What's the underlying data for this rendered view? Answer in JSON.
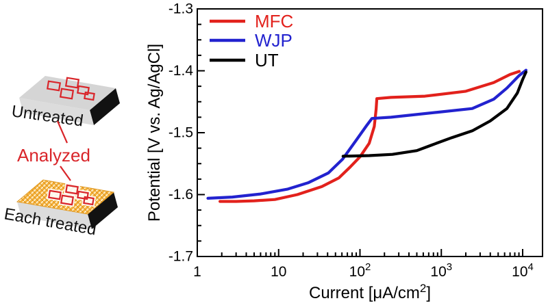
{
  "diagram": {
    "untreated_label": "Untreated",
    "analyzed_label": "Analyzed",
    "treated_label": "Each treated",
    "colors": {
      "accent": "#d9252a",
      "slab_top": "#d5d5d5",
      "slab_front": "#dcdcdc",
      "slab_side": "#121212",
      "treated_fill": "#f4b23a"
    }
  },
  "chart_data": {
    "type": "line",
    "title": "",
    "xlabel": "Current [μA/cm^2]",
    "ylabel": "Potential [V vs. Ag/AgCl]",
    "x_scale": "log",
    "xlim": [
      1,
      10000
    ],
    "ylim": [
      -1.7,
      -1.3
    ],
    "x_ticks": [
      "1",
      "10",
      "10^2",
      "10^3",
      "10^4"
    ],
    "x_tick_values": [
      1,
      10,
      100,
      1000,
      10000
    ],
    "y_ticks": [
      "-1.3",
      "-1.4",
      "-1.5",
      "-1.6",
      "-1.7"
    ],
    "y_tick_values": [
      -1.3,
      -1.4,
      -1.5,
      -1.6,
      -1.7
    ],
    "y_minor_step": 0.025,
    "grid": false,
    "legend_position": "top-left-inside",
    "series": [
      {
        "name": "MFC",
        "color": "#e2211c",
        "points": [
          [
            1.9,
            -1.611
          ],
          [
            3,
            -1.611
          ],
          [
            5,
            -1.61
          ],
          [
            9,
            -1.608
          ],
          [
            17,
            -1.6
          ],
          [
            34,
            -1.587
          ],
          [
            55,
            -1.573
          ],
          [
            75,
            -1.556
          ],
          [
            100,
            -1.539
          ],
          [
            130,
            -1.517
          ],
          [
            150,
            -1.49
          ],
          [
            158,
            -1.462
          ],
          [
            161,
            -1.445
          ],
          [
            240,
            -1.443
          ],
          [
            630,
            -1.441
          ],
          [
            2000,
            -1.433
          ],
          [
            4400,
            -1.419
          ],
          [
            7000,
            -1.406
          ],
          [
            9100,
            -1.401
          ]
        ]
      },
      {
        "name": "WJP",
        "color": "#2222cf",
        "points": [
          [
            1.35,
            -1.606
          ],
          [
            2.7,
            -1.604
          ],
          [
            6,
            -1.599
          ],
          [
            13,
            -1.591
          ],
          [
            23,
            -1.581
          ],
          [
            41,
            -1.565
          ],
          [
            61,
            -1.543
          ],
          [
            90,
            -1.512
          ],
          [
            120,
            -1.489
          ],
          [
            140,
            -1.477
          ],
          [
            240,
            -1.475
          ],
          [
            900,
            -1.467
          ],
          [
            2400,
            -1.461
          ],
          [
            4400,
            -1.446
          ],
          [
            6400,
            -1.428
          ],
          [
            9000,
            -1.408
          ],
          [
            11000,
            -1.399
          ]
        ]
      },
      {
        "name": "UT",
        "color": "#000000",
        "points": [
          [
            62,
            -1.538
          ],
          [
            130,
            -1.537
          ],
          [
            250,
            -1.535
          ],
          [
            500,
            -1.529
          ],
          [
            760,
            -1.52
          ],
          [
            1350,
            -1.508
          ],
          [
            2400,
            -1.497
          ],
          [
            4000,
            -1.481
          ],
          [
            6400,
            -1.461
          ],
          [
            8600,
            -1.436
          ],
          [
            10000,
            -1.414
          ],
          [
            11000,
            -1.402
          ]
        ]
      }
    ]
  }
}
